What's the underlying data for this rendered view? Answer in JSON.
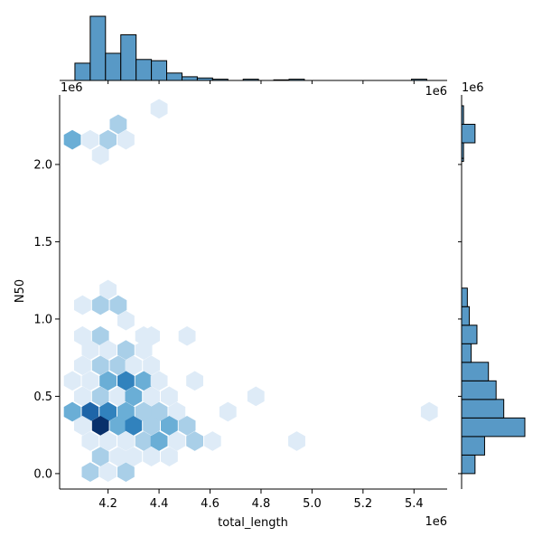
{
  "chart_data": {
    "type": "heatmap",
    "subtype": "hexbin jointplot with marginal histograms",
    "xlabel": "total_length",
    "ylabel": "N50",
    "x_offset_label": "1e6",
    "y_offset_label": "1e6",
    "xlim": [
      4.01,
      5.53
    ],
    "ylim": [
      -0.1,
      2.45
    ],
    "x_ticks": [
      4.2,
      4.4,
      4.6,
      4.8,
      5.0,
      5.2,
      5.4
    ],
    "x_tick_labels": [
      "4.2",
      "4.4",
      "4.6",
      "4.8",
      "5.0",
      "5.2",
      "5.4"
    ],
    "y_ticks": [
      0.0,
      0.5,
      1.0,
      1.5,
      2.0
    ],
    "y_tick_labels": [
      "0.0",
      "0.5",
      "1.0",
      "1.5",
      "2.0"
    ],
    "grid": false,
    "colormap": [
      "#deebf7",
      "#a9cfe8",
      "#6aaed6",
      "#3182bd",
      "#1e65a8",
      "#08306b",
      "#041120"
    ],
    "bar_color": "#5899c6",
    "hexbins": [
      [
        4.4,
        2.36,
        1
      ],
      [
        4.24,
        2.26,
        2
      ],
      [
        4.06,
        2.16,
        3
      ],
      [
        4.13,
        2.16,
        1
      ],
      [
        4.2,
        2.16,
        2
      ],
      [
        4.27,
        2.16,
        1
      ],
      [
        4.17,
        2.06,
        1
      ],
      [
        4.2,
        1.19,
        1
      ],
      [
        4.1,
        1.09,
        1
      ],
      [
        4.17,
        1.09,
        2
      ],
      [
        4.24,
        1.09,
        2
      ],
      [
        4.27,
        0.99,
        1
      ],
      [
        4.1,
        0.89,
        1
      ],
      [
        4.17,
        0.89,
        2
      ],
      [
        4.34,
        0.89,
        1
      ],
      [
        4.37,
        0.89,
        1
      ],
      [
        4.51,
        0.89,
        1
      ],
      [
        4.13,
        0.8,
        1
      ],
      [
        4.2,
        0.8,
        1
      ],
      [
        4.27,
        0.8,
        2
      ],
      [
        4.34,
        0.8,
        1
      ],
      [
        4.1,
        0.7,
        1
      ],
      [
        4.17,
        0.7,
        2
      ],
      [
        4.24,
        0.7,
        2
      ],
      [
        4.3,
        0.7,
        1
      ],
      [
        4.37,
        0.7,
        1
      ],
      [
        4.06,
        0.6,
        1
      ],
      [
        4.13,
        0.6,
        1
      ],
      [
        4.2,
        0.6,
        3
      ],
      [
        4.27,
        0.6,
        4
      ],
      [
        4.34,
        0.6,
        3
      ],
      [
        4.4,
        0.6,
        1
      ],
      [
        4.54,
        0.6,
        1
      ],
      [
        4.1,
        0.5,
        1
      ],
      [
        4.17,
        0.5,
        2
      ],
      [
        4.24,
        0.5,
        1
      ],
      [
        4.3,
        0.5,
        3
      ],
      [
        4.37,
        0.5,
        1
      ],
      [
        4.44,
        0.5,
        1
      ],
      [
        4.78,
        0.5,
        1
      ],
      [
        4.06,
        0.4,
        3
      ],
      [
        4.13,
        0.4,
        5
      ],
      [
        4.2,
        0.4,
        4
      ],
      [
        4.27,
        0.4,
        3
      ],
      [
        4.34,
        0.4,
        2
      ],
      [
        4.4,
        0.4,
        2
      ],
      [
        4.47,
        0.4,
        1
      ],
      [
        4.67,
        0.4,
        1
      ],
      [
        5.46,
        0.4,
        1
      ],
      [
        4.1,
        0.31,
        1
      ],
      [
        4.17,
        0.31,
        6
      ],
      [
        4.24,
        0.31,
        3
      ],
      [
        4.3,
        0.31,
        4
      ],
      [
        4.37,
        0.31,
        2
      ],
      [
        4.44,
        0.31,
        3
      ],
      [
        4.51,
        0.31,
        2
      ],
      [
        4.13,
        0.21,
        1
      ],
      [
        4.2,
        0.21,
        1
      ],
      [
        4.27,
        0.21,
        1
      ],
      [
        4.34,
        0.21,
        2
      ],
      [
        4.4,
        0.21,
        3
      ],
      [
        4.47,
        0.21,
        1
      ],
      [
        4.54,
        0.21,
        2
      ],
      [
        4.61,
        0.21,
        1
      ],
      [
        4.94,
        0.21,
        1
      ],
      [
        4.17,
        0.11,
        2
      ],
      [
        4.24,
        0.11,
        1
      ],
      [
        4.3,
        0.11,
        1
      ],
      [
        4.37,
        0.11,
        1
      ],
      [
        4.44,
        0.11,
        1
      ],
      [
        4.13,
        0.01,
        2
      ],
      [
        4.2,
        0.01,
        1
      ],
      [
        4.27,
        0.01,
        2
      ]
    ],
    "hist_x": {
      "bins": [
        [
          4.07,
          4.13
        ],
        [
          4.13,
          4.19
        ],
        [
          4.19,
          4.25
        ],
        [
          4.25,
          4.31
        ],
        [
          4.31,
          4.37
        ],
        [
          4.37,
          4.43
        ],
        [
          4.43,
          4.49
        ],
        [
          4.49,
          4.55
        ],
        [
          4.55,
          4.61
        ],
        [
          4.61,
          4.67
        ],
        [
          4.73,
          4.79
        ],
        [
          4.85,
          4.91
        ],
        [
          4.91,
          4.97
        ],
        [
          5.39,
          5.45
        ]
      ],
      "counts": [
        14,
        52,
        22,
        37,
        17,
        16,
        6,
        3,
        2,
        1,
        1,
        0.5,
        1,
        1
      ]
    },
    "hist_y": {
      "bins": [
        [
          0.0,
          0.12
        ],
        [
          0.12,
          0.24
        ],
        [
          0.24,
          0.36
        ],
        [
          0.36,
          0.48
        ],
        [
          0.48,
          0.6
        ],
        [
          0.6,
          0.72
        ],
        [
          0.72,
          0.84
        ],
        [
          0.84,
          0.96
        ],
        [
          0.96,
          1.08
        ],
        [
          1.08,
          1.2
        ],
        [
          2.02,
          2.04
        ],
        [
          2.04,
          2.14
        ],
        [
          2.14,
          2.26
        ],
        [
          2.26,
          2.38
        ]
      ],
      "counts": [
        7,
        12,
        33,
        22,
        18,
        14,
        5,
        8,
        4,
        3,
        1,
        1,
        7,
        1
      ]
    }
  }
}
